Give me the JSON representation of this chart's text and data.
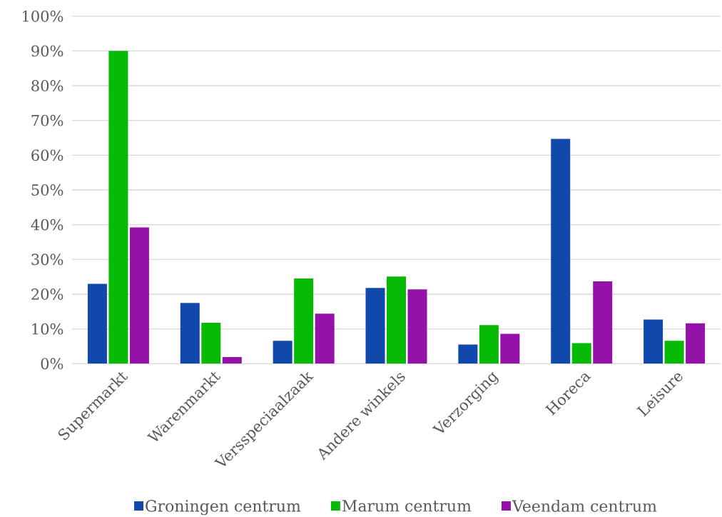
{
  "chart_data": {
    "type": "bar",
    "categories": [
      "Supermarkt",
      "Warenmarkt",
      "Versspeciaalzaak",
      "Andere winkels",
      "Verzorging",
      "Horeca",
      "Leisure"
    ],
    "series": [
      {
        "name": "Groningen centrum",
        "color": "#1048ac",
        "values": [
          23,
          17.5,
          6.6,
          21.8,
          5.5,
          64.7,
          12.7
        ]
      },
      {
        "name": "Marum centrum",
        "color": "#06ba06",
        "values": [
          90,
          11.8,
          24.5,
          25.1,
          11.1,
          5.9,
          6.6
        ]
      },
      {
        "name": "Veendam centrum",
        "color": "#9512a8",
        "values": [
          39.2,
          1.9,
          14.4,
          21.4,
          8.6,
          23.7,
          11.6
        ]
      }
    ],
    "ylim": [
      0,
      100
    ],
    "yticks": [
      {
        "value": 0,
        "label": "0%"
      },
      {
        "value": 10,
        "label": "10%"
      },
      {
        "value": 20,
        "label": "20%"
      },
      {
        "value": 30,
        "label": "30%"
      },
      {
        "value": 40,
        "label": "40%"
      },
      {
        "value": 50,
        "label": "50%"
      },
      {
        "value": 60,
        "label": "60%"
      },
      {
        "value": 70,
        "label": "70%"
      },
      {
        "value": 80,
        "label": "80%"
      },
      {
        "value": 90,
        "label": "90%"
      },
      {
        "value": 100,
        "label": "100%"
      }
    ],
    "grid": "y",
    "legend": "bottom"
  }
}
